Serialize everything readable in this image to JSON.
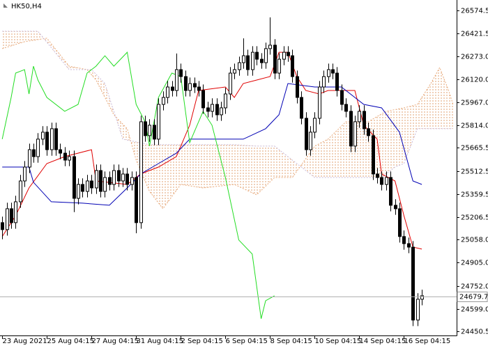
{
  "chart_data": {
    "type": "candlestick",
    "symbol": "HK50,H4",
    "xlim": [
      -0.5,
      101.8
    ],
    "ylim": [
      24423,
      26644
    ],
    "xticks": [
      {
        "value": 0,
        "label": "23 Aug 2021"
      },
      {
        "value": 10,
        "label": "25 Aug 04:15"
      },
      {
        "value": 20,
        "label": "27 Aug 04:15"
      },
      {
        "value": 30,
        "label": "31 Aug 04:15"
      },
      {
        "value": 40,
        "label": "2 Sep 04:15"
      },
      {
        "value": 50,
        "label": "6 Sep 04:15"
      },
      {
        "value": 60,
        "label": "8 Sep 04:15"
      },
      {
        "value": 70,
        "label": "10 Sep 04:15"
      },
      {
        "value": 80,
        "label": "14 Sep 04:15"
      },
      {
        "value": 90,
        "label": "16 Sep 04:15"
      }
    ],
    "yticks": [
      26574.5,
      26421.5,
      {
        "value": 26273,
        "label": "26273.0"
      },
      {
        "value": 26120,
        "label": "26120.0"
      },
      {
        "value": 25967,
        "label": "25967.0"
      },
      {
        "value": 25814,
        "label": "25814.0"
      },
      25665.5,
      25512.5,
      25359.5,
      25206.5,
      {
        "value": 25058,
        "label": "25058.0"
      },
      {
        "value": 24905,
        "label": "24905.0"
      },
      {
        "value": 24752,
        "label": "24752.0"
      },
      {
        "value": 24599,
        "label": "24599.0"
      },
      24450.5
    ],
    "price_line": 24679.7,
    "up_color": "#ffffff",
    "down_color": "#000000",
    "candles": {
      "x": [
        0,
        1,
        2,
        3,
        4,
        5,
        6,
        7,
        8,
        9,
        10,
        11,
        12,
        13,
        14,
        15,
        16,
        17,
        18,
        19,
        20,
        21,
        22,
        23,
        24,
        25,
        26,
        27,
        28,
        29,
        30,
        31,
        32,
        33,
        34,
        35,
        36,
        37,
        38,
        39,
        40,
        41,
        42,
        43,
        44,
        45,
        46,
        47,
        48,
        49,
        50,
        51,
        52,
        53,
        54,
        55,
        56,
        57,
        58,
        59,
        60,
        61,
        62,
        63,
        64,
        65,
        66,
        67,
        68,
        69,
        70,
        71,
        72,
        73,
        74,
        75,
        76,
        77,
        78,
        79,
        80,
        81,
        82,
        83,
        84,
        85,
        86,
        87,
        88,
        89,
        90,
        91,
        92,
        93,
        94
      ],
      "open": [
        25170,
        25124,
        25262,
        25170,
        25308,
        25446,
        25538,
        25653,
        25607,
        25723,
        25769,
        25653,
        25792,
        25653,
        25630,
        25584,
        25607,
        25331,
        25423,
        25377,
        25446,
        25400,
        25515,
        25377,
        25469,
        25423,
        25515,
        25446,
        25492,
        25423,
        25469,
        25170,
        25838,
        25746,
        25815,
        25723,
        25953,
        25999,
        26068,
        26045,
        26183,
        26137,
        26045,
        26091,
        26068,
        26045,
        25930,
        25907,
        25953,
        25884,
        25930,
        26022,
        26160,
        26183,
        26229,
        26275,
        26183,
        26298,
        26252,
        26229,
        26322,
        26345,
        26160,
        26252,
        26298,
        26275,
        26137,
        25999,
        25861,
        25653,
        25769,
        25861,
        26068,
        26137,
        26183,
        26160,
        26045,
        25953,
        25907,
        25677,
        25838,
        25907,
        25792,
        25746,
        25492,
        25469,
        25423,
        25469,
        25285,
        25262,
        25078,
        25031,
        25008,
        24525,
        24663
      ],
      "high": [
        25210,
        25302,
        25302,
        25348,
        25486,
        25578,
        25693,
        25693,
        25763,
        25809,
        25809,
        25832,
        25832,
        25693,
        25670,
        25647,
        25647,
        25463,
        25463,
        25486,
        25486,
        25555,
        25555,
        25509,
        25509,
        25555,
        25555,
        25532,
        25532,
        25509,
        25509,
        25878,
        25878,
        25855,
        25855,
        25993,
        26039,
        26108,
        26108,
        26290,
        26223,
        26177,
        26131,
        26131,
        26108,
        26085,
        25970,
        25993,
        25993,
        25970,
        26062,
        26200,
        26223,
        26269,
        26390,
        26315,
        26338,
        26338,
        26292,
        26362,
        26529,
        26385,
        26292,
        26338,
        26338,
        26315,
        26177,
        26039,
        25901,
        25809,
        25901,
        26108,
        26177,
        26223,
        26223,
        26200,
        26085,
        25993,
        25947,
        25878,
        25947,
        25947,
        25832,
        25786,
        25532,
        25509,
        25509,
        25509,
        25325,
        25302,
        25118,
        25071,
        25048,
        24703,
        24726
      ],
      "low": [
        25060,
        25084,
        25130,
        25130,
        25268,
        25406,
        25498,
        25567,
        25567,
        25683,
        25613,
        25613,
        25613,
        25590,
        25544,
        25544,
        25240,
        25291,
        25337,
        25337,
        25360,
        25360,
        25337,
        25337,
        25383,
        25383,
        25406,
        25406,
        25383,
        25383,
        25100,
        25130,
        25706,
        25706,
        25683,
        25683,
        25913,
        25959,
        26005,
        26005,
        26097,
        26005,
        26005,
        26028,
        26005,
        25890,
        25867,
        25867,
        25844,
        25844,
        25890,
        25982,
        26120,
        26143,
        26189,
        26143,
        26143,
        26212,
        26189,
        26189,
        26282,
        26120,
        26120,
        26212,
        26235,
        26097,
        25959,
        25821,
        25613,
        25613,
        25729,
        25821,
        26028,
        26097,
        26120,
        26005,
        25913,
        25867,
        25637,
        25637,
        25798,
        25752,
        25706,
        25452,
        25429,
        25383,
        25383,
        25245,
        25222,
        25038,
        24991,
        24968,
        24485,
        24485,
        24623
      ],
      "close": [
        25124,
        25262,
        25170,
        25308,
        25446,
        25538,
        25653,
        25607,
        25723,
        25769,
        25653,
        25792,
        25653,
        25630,
        25584,
        25607,
        25331,
        25423,
        25377,
        25446,
        25400,
        25515,
        25377,
        25469,
        25423,
        25515,
        25446,
        25492,
        25423,
        25469,
        25170,
        25838,
        25746,
        25815,
        25723,
        25953,
        25999,
        26068,
        26045,
        26183,
        26137,
        26045,
        26091,
        26068,
        26045,
        25930,
        25907,
        25953,
        25884,
        25930,
        26022,
        26160,
        26183,
        26229,
        26275,
        26183,
        26298,
        26252,
        26229,
        26322,
        26345,
        26160,
        26252,
        26298,
        26275,
        26137,
        25999,
        25861,
        25653,
        25769,
        25861,
        26068,
        26137,
        26183,
        26160,
        26045,
        25953,
        25907,
        25677,
        25838,
        25907,
        25792,
        25746,
        25492,
        25469,
        25423,
        25469,
        25285,
        25262,
        25078,
        25031,
        25008,
        24525,
        24663,
        24686
      ]
    },
    "lines": [
      {
        "color": "#e8a878",
        "style": "dotted",
        "x": [
          0,
          5,
          10,
          15,
          19,
          21,
          25,
          28,
          30,
          33,
          36,
          40,
          45,
          52,
          57,
          61,
          65,
          70,
          73,
          77,
          82,
          86,
          90,
          93,
          96,
          98,
          100,
          101
        ],
        "values": [
          26322,
          26368,
          26391,
          26206,
          26183,
          26114,
          25884,
          25792,
          25584,
          25377,
          25262,
          25423,
          25400,
          25423,
          25354,
          25469,
          25469,
          25677,
          25723,
          25838,
          25838,
          25907,
          25930,
          25953,
          26091,
          26197,
          26045,
          25953
        ]
      },
      {
        "color": "#c8b8d8",
        "style": "dotted",
        "x": [
          0,
          8,
          15,
          20,
          23,
          27,
          33,
          45,
          52,
          57,
          61,
          65,
          70,
          85,
          88,
          90,
          93,
          101
        ],
        "values": [
          26437,
          26437,
          26183,
          26183,
          26091,
          25723,
          25686,
          25686,
          25686,
          25677,
          25677,
          25584,
          25469,
          25469,
          25538,
          25561,
          25792,
          25792
        ]
      },
      {
        "color": "#e00000",
        "style": "solid",
        "x": [
          0,
          3,
          6,
          10,
          14,
          20,
          21,
          28,
          31,
          35,
          39,
          42,
          44,
          50,
          52,
          54,
          57,
          60,
          62,
          64,
          66,
          68,
          71,
          73,
          79,
          81,
          84,
          85,
          88,
          90,
          92,
          94
        ],
        "values": [
          25078,
          25216,
          25400,
          25561,
          25607,
          25653,
          25446,
          25423,
          25492,
          25538,
          25607,
          25815,
          26045,
          26068,
          25999,
          26091,
          26114,
          26137,
          26298,
          26298,
          26137,
          26045,
          26022,
          26045,
          26045,
          25815,
          25723,
          25492,
          25446,
          25216,
          25008,
          24995
        ]
      },
      {
        "color": "#0000b4",
        "style": "solid",
        "x": [
          0,
          6,
          7,
          11,
          18,
          24,
          28,
          31,
          35,
          39,
          42,
          54,
          59,
          62,
          64,
          70,
          76,
          81,
          85,
          89,
          92,
          94
        ],
        "values": [
          25538,
          25538,
          25437,
          25308,
          25299,
          25285,
          25400,
          25492,
          25561,
          25630,
          25723,
          25723,
          25792,
          25884,
          26091,
          26068,
          26068,
          25953,
          25930,
          25769,
          25446,
          25423
        ]
      },
      {
        "color": "#22dd22",
        "style": "solid",
        "x": [
          0,
          2,
          3,
          5,
          6,
          7,
          8,
          10,
          14,
          17,
          19,
          21,
          23,
          25,
          28,
          30,
          32,
          33,
          35,
          38,
          40,
          42,
          45,
          47,
          50,
          53,
          56,
          58,
          59,
          61
        ],
        "values": [
          25723,
          25999,
          26160,
          26183,
          26022,
          26206,
          26114,
          25999,
          25907,
          25953,
          26160,
          26206,
          26275,
          26206,
          26298,
          25953,
          25838,
          25677,
          25999,
          26160,
          26137,
          25700,
          25907,
          25815,
          25469,
          25055,
          24962,
          24534,
          24653,
          24686
        ]
      }
    ]
  }
}
